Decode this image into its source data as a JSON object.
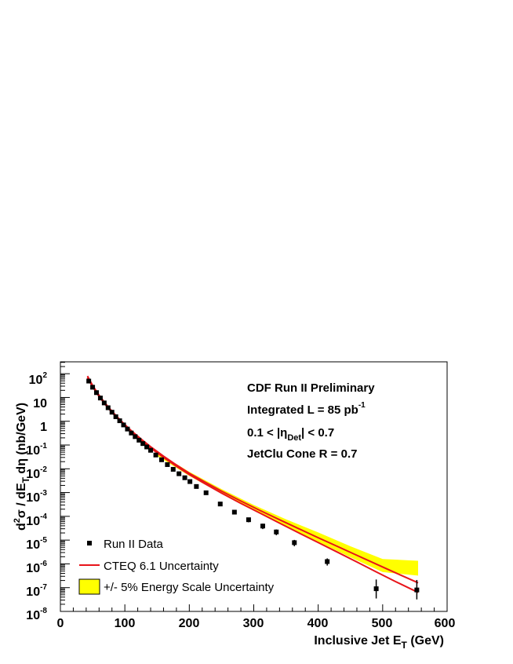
{
  "chart_data": {
    "type": "scatter",
    "title_lines": {
      "line1": "CDF Run II Preliminary",
      "line2_main": "Integrated L = 85 pb",
      "line2_sup": "-1",
      "line3_pre": "0.1 < |η",
      "line3_sub": "Det",
      "line3_post": "| < 0.7",
      "line4": "JetClu Cone R = 0.7"
    },
    "xlabel_main": "Inclusive Jet E",
    "xlabel_sub": "T",
    "xlabel_unit": " (GeV)",
    "ylabel_pre": "d",
    "ylabel_sup": "2",
    "ylabel_mid": "σ / dE",
    "ylabel_sub": "T",
    "ylabel_post": " dη (nb/GeV)",
    "xlim": [
      0,
      600
    ],
    "ylim_log10": [
      -8,
      2.5
    ],
    "x_ticks": [
      "0",
      "100",
      "200",
      "300",
      "400",
      "500",
      "600"
    ],
    "y_ticks": [
      {
        "base": "10",
        "exp": "2"
      },
      {
        "base": "10",
        "exp": ""
      },
      {
        "base": "1",
        "exp": ""
      },
      {
        "base": "10",
        "exp": "-1"
      },
      {
        "base": "10",
        "exp": "-2"
      },
      {
        "base": "10",
        "exp": "-3"
      },
      {
        "base": "10",
        "exp": "-4"
      },
      {
        "base": "10",
        "exp": "-5"
      },
      {
        "base": "10",
        "exp": "-6"
      },
      {
        "base": "10",
        "exp": "-7"
      },
      {
        "base": "10",
        "exp": "-8"
      }
    ],
    "legend": {
      "position": "bottom-left",
      "data_label": "Run II Data",
      "theory_label": "CTEQ 6.1 Uncertainty",
      "band_label": "+/- 5% Energy Scale Uncertainty"
    },
    "series": [
      {
        "name": "Run II Data",
        "x": [
          44,
          50,
          56,
          62,
          68,
          74,
          80,
          86,
          92,
          98,
          104,
          110,
          116,
          122,
          128,
          134,
          140,
          148,
          157,
          166,
          175,
          184,
          193,
          201,
          211,
          226,
          248,
          270,
          292,
          314,
          335,
          363,
          414,
          490,
          553
        ],
        "y": [
          49,
          27,
          16,
          9.5,
          5.9,
          3.7,
          2.4,
          1.55,
          1.05,
          0.7,
          0.47,
          0.32,
          0.225,
          0.16,
          0.115,
          0.083,
          0.06,
          0.038,
          0.024,
          0.015,
          0.0095,
          0.0062,
          0.0042,
          0.0029,
          0.0018,
          0.00098,
          0.00033,
          0.00015,
          7.2e-05,
          3.9e-05,
          2.2e-05,
          7.8e-06,
          1.25e-06,
          9e-08,
          8e-08
        ],
        "y_err_high": [
          55,
          30,
          18,
          10.5,
          6.5,
          4.1,
          2.65,
          1.7,
          1.15,
          0.77,
          0.52,
          0.35,
          0.25,
          0.175,
          0.127,
          0.092,
          0.066,
          0.042,
          0.027,
          0.0168,
          0.0107,
          0.007,
          0.0048,
          0.0033,
          0.0021,
          0.00115,
          0.00039,
          0.00018,
          8.8e-05,
          4.9e-05,
          2.8e-05,
          1.02e-05,
          1.7e-06,
          2.2e-07,
          2.1e-07
        ],
        "y_err_low": [
          44,
          24,
          14,
          8.5,
          5.3,
          3.3,
          2.15,
          1.4,
          0.95,
          0.63,
          0.42,
          0.29,
          0.2,
          0.145,
          0.103,
          0.074,
          0.054,
          0.034,
          0.021,
          0.0132,
          0.0083,
          0.0054,
          0.0036,
          0.0025,
          0.0015,
          0.0008,
          0.00027,
          0.00012,
          5.6e-05,
          2.9e-05,
          1.6e-05,
          5.5e-06,
          8.5e-07,
          3.5e-08,
          3.2e-08
        ]
      },
      {
        "name": "CTEQ 6.1 Uncertainty (upper)",
        "x": [
          42,
          50,
          60,
          70,
          80,
          90,
          100,
          110,
          125,
          140,
          160,
          180,
          200,
          225,
          250,
          280,
          310,
          340,
          370,
          400,
          430,
          460,
          490,
          520,
          555
        ],
        "y": [
          80,
          32,
          12.5,
          5.5,
          2.65,
          1.35,
          0.72,
          0.4,
          0.18,
          0.085,
          0.034,
          0.0145,
          0.0065,
          0.0027,
          0.00115,
          0.00044,
          0.000175,
          7.2e-05,
          3e-05,
          1.26e-05,
          5.4e-06,
          2.3e-06,
          9.8e-07,
          4.2e-07,
          1.6e-07
        ]
      },
      {
        "name": "CTEQ 6.1 Uncertainty (lower)",
        "x": [
          42,
          50,
          60,
          70,
          80,
          90,
          100,
          110,
          125,
          140,
          160,
          180,
          200,
          225,
          250,
          280,
          310,
          340,
          370,
          400,
          430,
          460,
          490,
          520,
          555
        ],
        "y": [
          70,
          28,
          11,
          4.9,
          2.35,
          1.2,
          0.64,
          0.355,
          0.16,
          0.075,
          0.03,
          0.0128,
          0.0057,
          0.0023,
          0.00095,
          0.00035,
          0.000135,
          5.2e-05,
          2e-05,
          7.9e-06,
          3.1e-06,
          1.2e-06,
          4.6e-07,
          1.8e-07,
          6.3e-08
        ]
      },
      {
        "name": "+/- 5% Energy Scale Uncertainty",
        "x": [
          150,
          200,
          250,
          300,
          350,
          400,
          450,
          500,
          555
        ],
        "y_high": [
          0.05,
          0.0075,
          0.0014,
          0.0003,
          7.5e-05,
          2.1e-05,
          5.5e-06,
          1.6e-06,
          1.35e-06
        ],
        "y_low": [
          0.035,
          0.005,
          0.0009,
          0.00018,
          3.8e-05,
          8.5e-06,
          1.9e-06,
          4.5e-07,
          3.2e-07
        ]
      }
    ]
  }
}
